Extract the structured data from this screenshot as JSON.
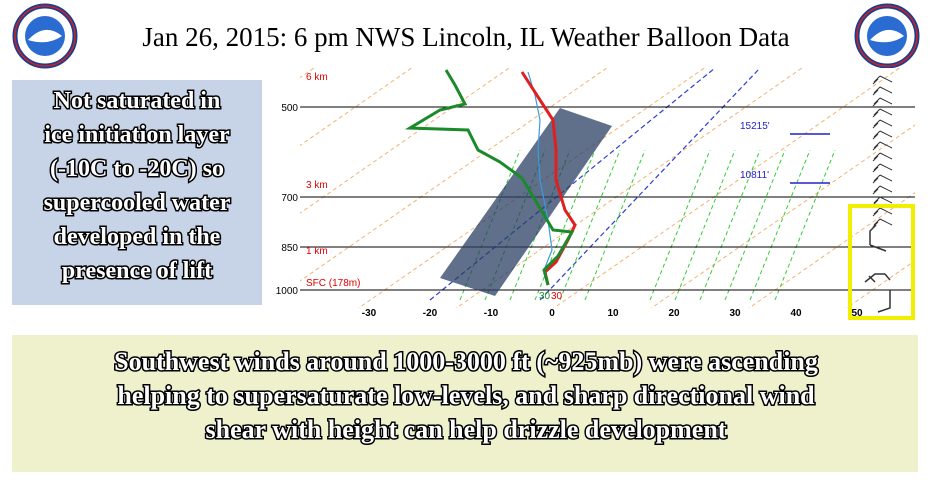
{
  "header": {
    "title": "Jan 26, 2015:  6 pm NWS Lincoln, IL Weather Balloon Data"
  },
  "callout": {
    "lines": [
      "Not saturated in",
      "ice initiation layer",
      "(-10C to -20C) so",
      "supercooled water",
      "developed in the",
      "presence of lift"
    ]
  },
  "skewt": {
    "pressure_labels": [
      "500",
      "700",
      "850",
      "1000"
    ],
    "height_labels": [
      "6 km",
      "3 km",
      "1 km",
      "SFC (178m)"
    ],
    "x_tick_labels": [
      "-30",
      "-20",
      "-10",
      "0",
      "10",
      "20",
      "30",
      "40",
      "50"
    ],
    "level_labels": [
      "15215'",
      "10811'"
    ],
    "surface_labels": [
      "30",
      "30"
    ]
  },
  "footer": {
    "lines": [
      "Southwest winds around 1000-3000 ft (~925mb) were ascending",
      "helping to supersaturate low-levels, and sharp directional wind",
      "shear with height can help drizzle development"
    ]
  }
}
